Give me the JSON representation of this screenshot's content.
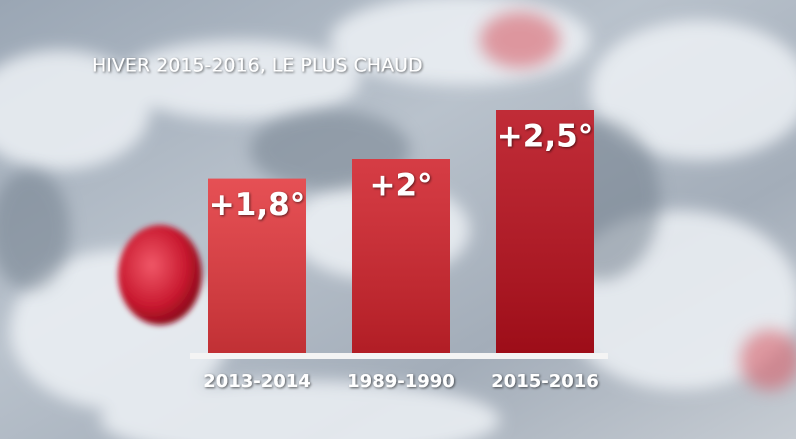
{
  "chart_data": {
    "type": "bar",
    "title": "HIVER 2015-2016, LE PLUS CHAUD",
    "categories": [
      "2013-2014",
      "1989-1990",
      "2015-2016"
    ],
    "values": [
      1.8,
      2,
      2.5
    ],
    "value_labels": [
      "+1,8°",
      "+2°",
      "+2,5°"
    ],
    "colors": [
      "#e2383d",
      "#d0222b",
      "#b80f1c"
    ]
  }
}
